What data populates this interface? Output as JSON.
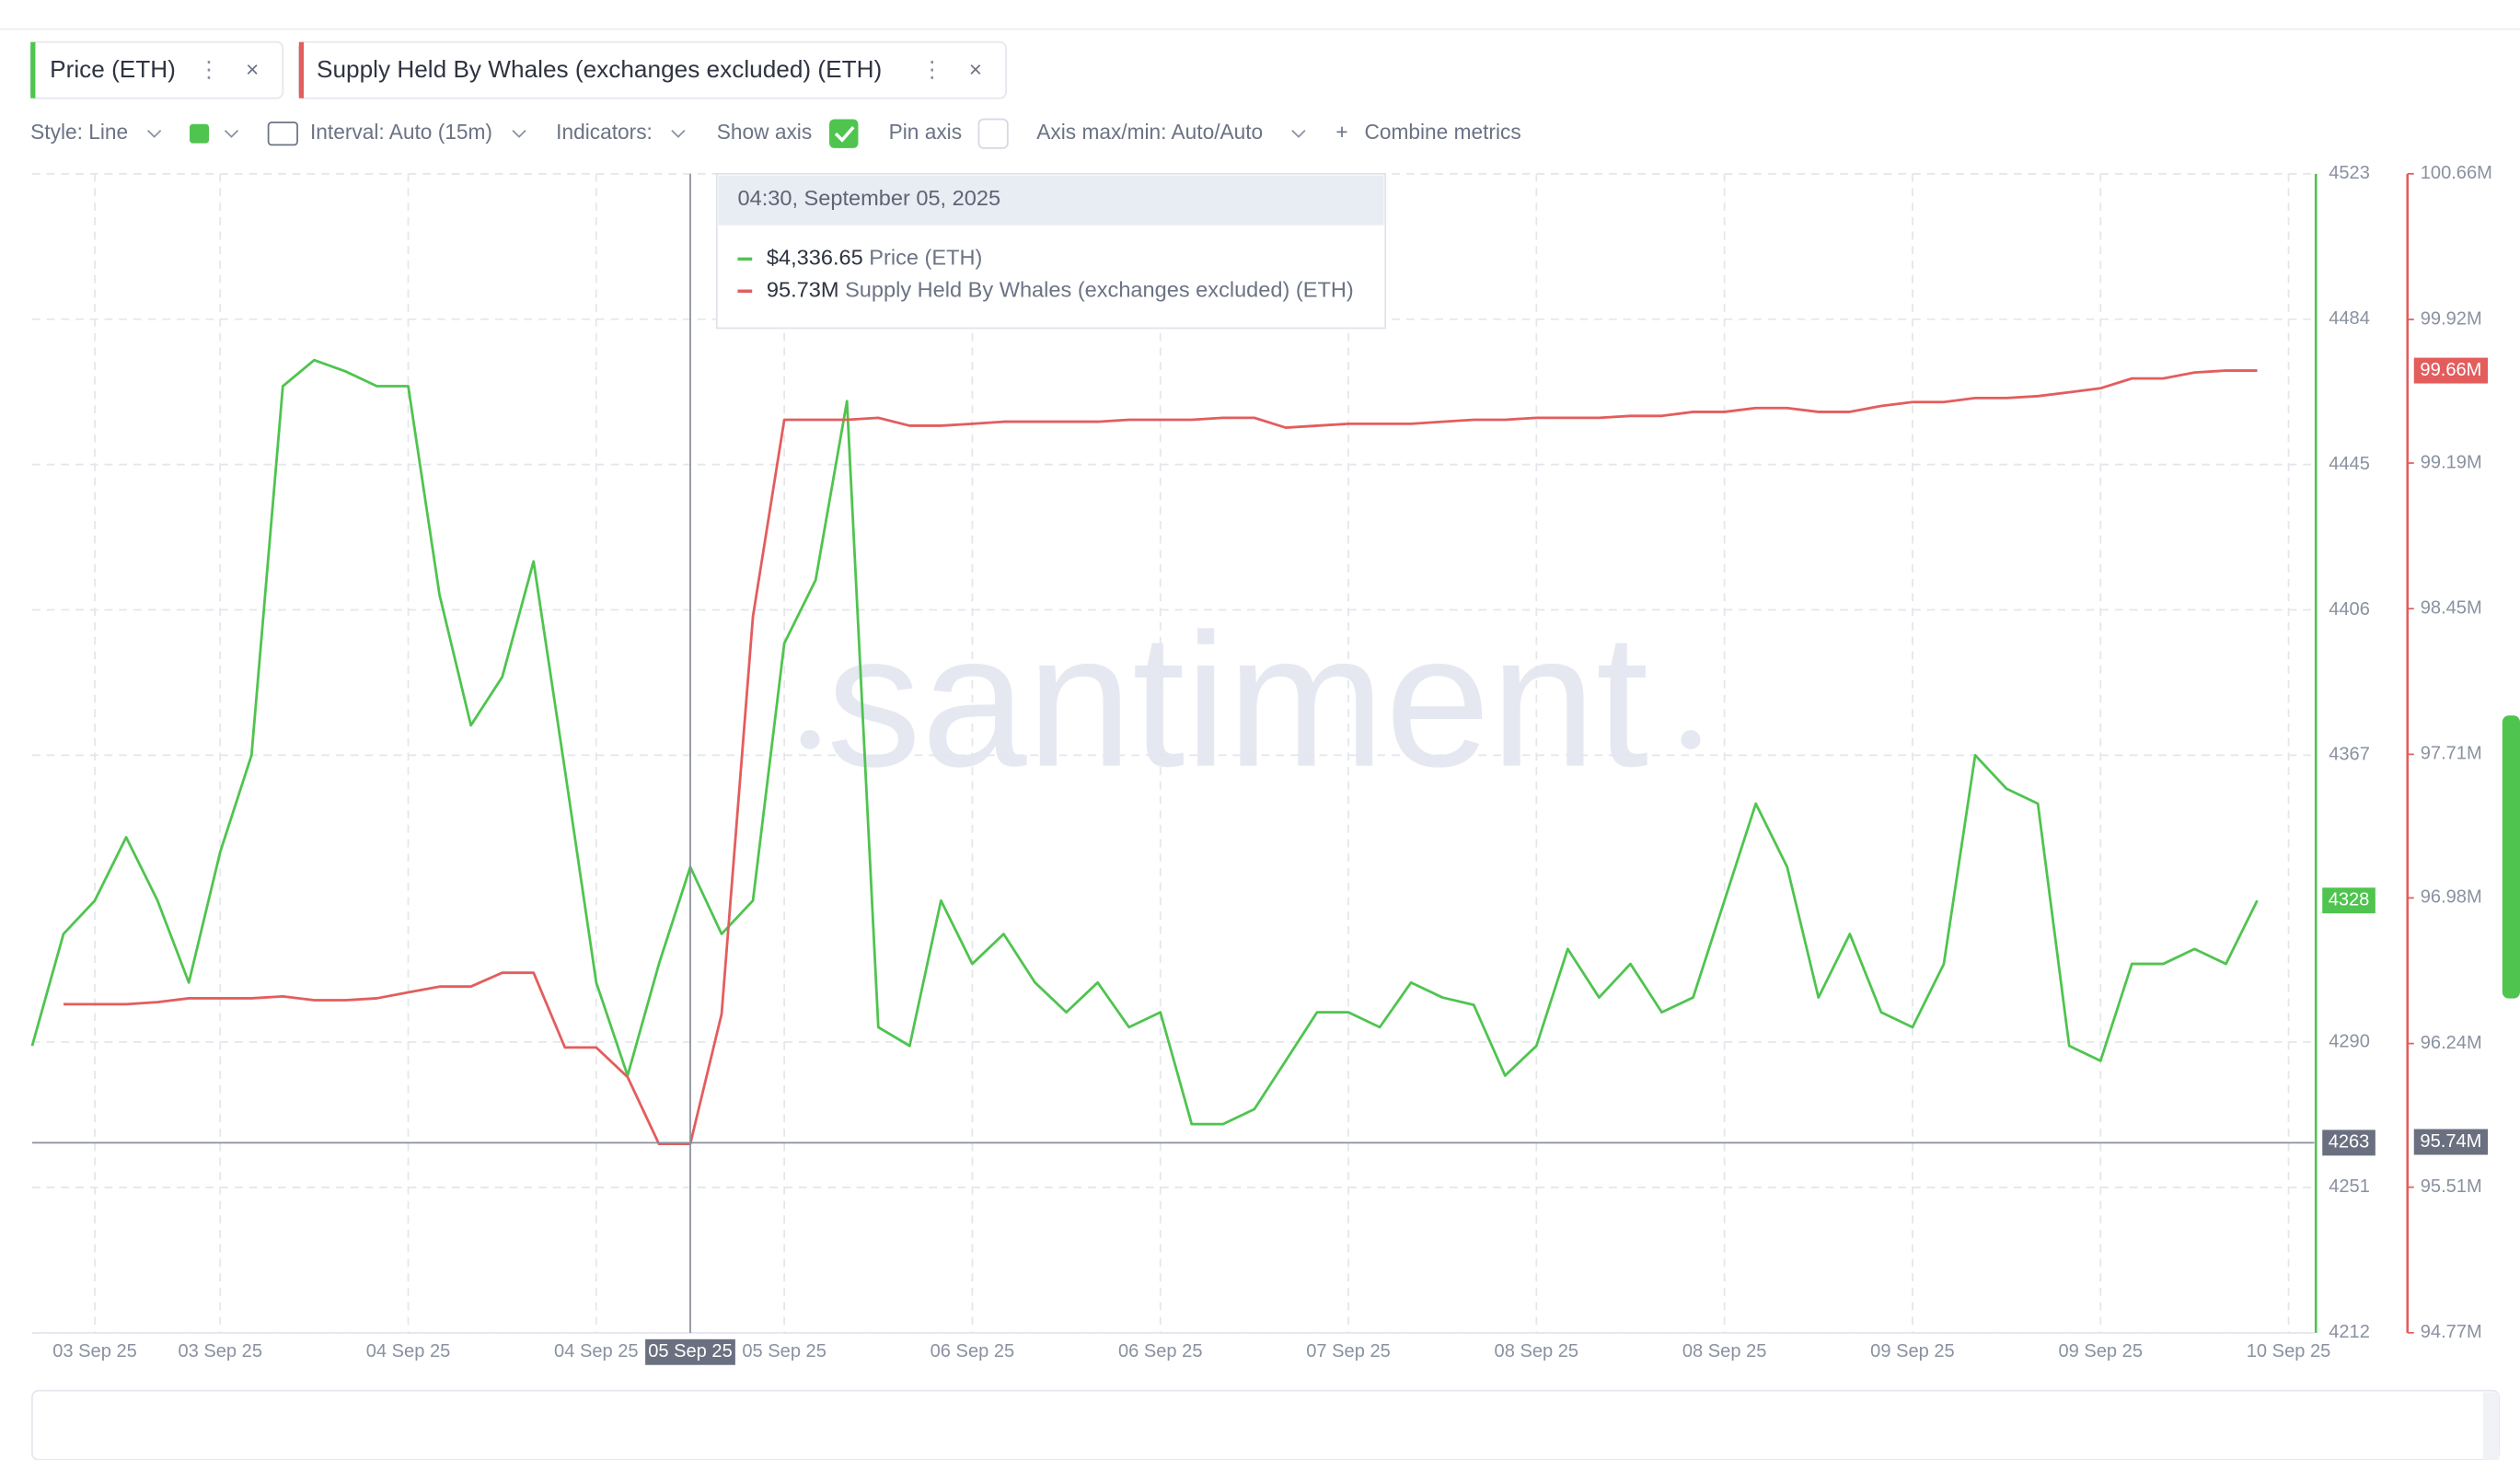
{
  "chart_data": {
    "type": "line",
    "series": [
      {
        "name": "Price (ETH)",
        "color": "#4fc44f",
        "axis": "y",
        "values": [
          4289,
          4319,
          4328,
          4345,
          4328,
          4306,
          4341,
          4367,
          4466,
          4473,
          4470,
          4466,
          4466,
          4410,
          4375,
          4388,
          4419,
          4363,
          4306,
          4281,
          4311,
          4337,
          4319,
          4328,
          4397,
          4414,
          4462,
          4294,
          4289,
          4328,
          4311,
          4319,
          4306,
          4298,
          4306,
          4294,
          4298,
          4268,
          4268,
          4272,
          4285,
          4298,
          4298,
          4294,
          4306,
          4302,
          4300,
          4281,
          4289,
          4315,
          4302,
          4311,
          4298,
          4302,
          4328,
          4354,
          4337,
          4302,
          4319,
          4298,
          4294,
          4311,
          4367,
          4358,
          4354,
          4289,
          4285,
          4311,
          4311,
          4315,
          4311,
          4328,
          null
        ]
      },
      {
        "name": "Supply Held By Whales (exchanges excluded) (ETH)",
        "color": "#e35d5d",
        "axis": "y2",
        "values": [
          null,
          96.44,
          96.44,
          96.44,
          96.45,
          96.47,
          96.47,
          96.47,
          96.48,
          96.46,
          96.46,
          96.47,
          96.5,
          96.53,
          96.53,
          96.6,
          96.6,
          96.22,
          96.22,
          96.07,
          95.73,
          95.73,
          96.39,
          98.41,
          99.41,
          99.41,
          99.41,
          99.42,
          99.38,
          99.38,
          99.39,
          99.4,
          99.4,
          99.4,
          99.4,
          99.41,
          99.41,
          99.41,
          99.42,
          99.42,
          99.37,
          99.38,
          99.39,
          99.39,
          99.39,
          99.4,
          99.41,
          99.41,
          99.42,
          99.42,
          99.42,
          99.43,
          99.43,
          99.45,
          99.45,
          99.47,
          99.47,
          99.45,
          99.45,
          99.48,
          99.5,
          99.5,
          99.52,
          99.52,
          99.53,
          99.55,
          99.57,
          99.62,
          99.62,
          99.65,
          99.66,
          99.66,
          null
        ]
      }
    ],
    "categories": [
      null,
      null,
      "03 Sep 25",
      null,
      null,
      null,
      "03 Sep 25",
      null,
      null,
      null,
      null,
      null,
      "04 Sep 25",
      null,
      null,
      null,
      null,
      null,
      "04 Sep 25",
      null,
      null,
      null,
      null,
      null,
      "05 Sep 25",
      null,
      null,
      null,
      null,
      null,
      "06 Sep 25",
      null,
      null,
      null,
      null,
      null,
      "06 Sep 25",
      null,
      null,
      null,
      null,
      null,
      "07 Sep 25",
      null,
      null,
      null,
      null,
      null,
      "08 Sep 25",
      null,
      null,
      null,
      null,
      null,
      "08 Sep 25",
      null,
      null,
      null,
      null,
      null,
      "09 Sep 25",
      null,
      null,
      null,
      null,
      null,
      "09 Sep 25",
      null,
      null,
      null,
      null,
      null,
      "10 Sep 25"
    ],
    "ylim": [
      4212,
      4523
    ],
    "yticks": [
      4212,
      4251,
      4290,
      4367,
      4406,
      4445,
      4484,
      4523
    ],
    "y2lim": [
      94.77,
      100.66
    ],
    "y2ticks": [
      {
        "value": 94.77,
        "label": "94.77M"
      },
      {
        "value": 95.51,
        "label": "95.51M"
      },
      {
        "value": 96.24,
        "label": "96.24M"
      },
      {
        "value": 96.98,
        "label": "96.98M"
      },
      {
        "value": 97.71,
        "label": "97.71M"
      },
      {
        "value": 98.45,
        "label": "98.45M"
      },
      {
        "value": 99.19,
        "label": "99.19M"
      },
      {
        "value": 99.92,
        "label": "99.92M"
      },
      {
        "value": 100.66,
        "label": "100.66M"
      }
    ],
    "grid": true,
    "last_value_markers": [
      {
        "value": 4328,
        "axis": "y"
      },
      {
        "value": 99.66,
        "label": "99.66M",
        "axis": "y2"
      }
    ],
    "crosshair": {
      "x": 21,
      "x_label": "05 Sep 25",
      "y": 4263,
      "y2": {
        "value": 95.74,
        "label": "95.74M"
      }
    },
    "tooltip": {
      "title": "04:30, September 05, 2025",
      "values": [
        4336.65,
        95.73
      ],
      "value_labels": [
        "$4,336.65",
        "95.73M"
      ]
    }
  },
  "ui": {
    "toolbar": [
      "Style: Line",
      "Interval: Auto (15m)",
      "Indicators:",
      "Show axis",
      "Pin axis",
      "Axis max/min: Auto/Auto",
      "Combine metrics"
    ],
    "watermark": "santiment"
  }
}
